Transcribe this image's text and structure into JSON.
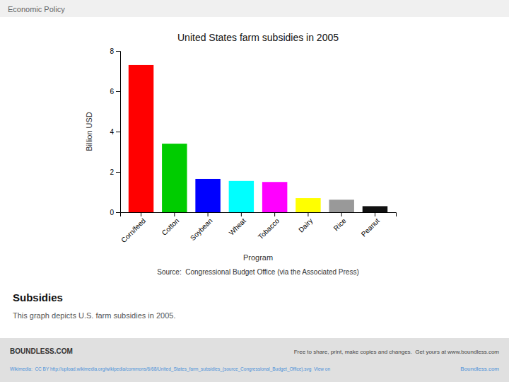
{
  "chart_data": {
    "type": "bar",
    "title": "United States farm subsidies in 2005",
    "subtitle": "Subsidies",
    "xlabel": "Program",
    "ylabel": "Billion USD",
    "categories": [
      "Corn/feed",
      "Cotton",
      "Soybean",
      "Wheat",
      "Tobacco",
      "Dairy",
      "Rice",
      "Peanut"
    ],
    "values": [
      7.3,
      3.4,
      1.65,
      1.55,
      1.5,
      0.7,
      0.62,
      0.3
    ],
    "colors": [
      "#ff0000",
      "#00cc00",
      "#0000ff",
      "#00ffff",
      "#ff00ff",
      "#ffff00",
      "#999999",
      "#111111"
    ],
    "ylim": [
      0,
      8
    ],
    "yticks": [
      0,
      2,
      4,
      6,
      8
    ],
    "grid": false,
    "annotations": [
      "Economic Policy",
      "This graph depicts U.S. farm subsidies in 2005.",
      "Source:  Congressional Budget Office (via the Associated Press)",
      "BOUNDLESS.COM",
      "Wikimedia:  CC BY http://upload.wikimedia.org/wikipedia/commons/6/68/United_States_farm_subsidies_(source_Congressional_Budget_Office).svg  View on",
      "Free to share, print, make copies and changes.  Get yours at www.boundless.com",
      "Boundless.com"
    ]
  }
}
